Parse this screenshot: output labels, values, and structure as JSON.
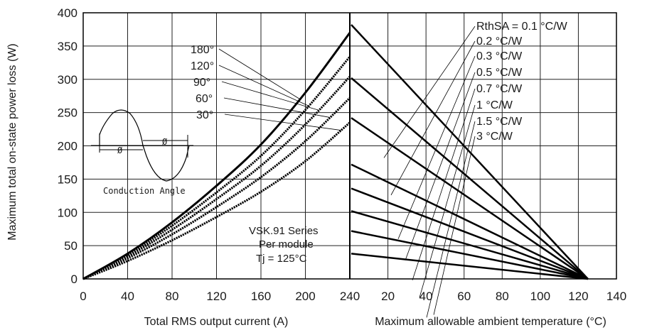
{
  "chart_data": [
    {
      "type": "line",
      "xlabel": "Total RMS output current (A)",
      "ylabel": "Maximum total on-state power loss (W)",
      "xlim": [
        0,
        240
      ],
      "ylim": [
        0,
        400
      ],
      "x_ticks": [
        "0",
        "40",
        "80",
        "120",
        "160",
        "200",
        "240"
      ],
      "y_ticks": [
        "0",
        "50",
        "100",
        "150",
        "200",
        "250",
        "300",
        "350",
        "400"
      ],
      "grid": true,
      "series": [
        {
          "name": "180°",
          "x": [
            0,
            40,
            80,
            120,
            160,
            200,
            240
          ],
          "y": [
            0,
            38,
            85,
            140,
            202,
            280,
            370
          ]
        },
        {
          "name": "120°",
          "x": [
            0,
            40,
            80,
            120,
            160,
            200,
            240
          ],
          "y": [
            0,
            36,
            80,
            130,
            185,
            254,
            334
          ]
        },
        {
          "name": "90°",
          "x": [
            0,
            40,
            80,
            120,
            160,
            200,
            240
          ],
          "y": [
            0,
            34,
            74,
            120,
            170,
            232,
            304
          ]
        },
        {
          "name": "60°",
          "x": [
            0,
            40,
            80,
            120,
            160,
            200,
            240
          ],
          "y": [
            0,
            31,
            67,
            108,
            153,
            207,
            272
          ]
        },
        {
          "name": "30°",
          "x": [
            0,
            40,
            80,
            120,
            160,
            200,
            240
          ],
          "y": [
            0,
            27,
            58,
            93,
            131,
            177,
            235
          ]
        }
      ],
      "annotations": {
        "series_text": "VSK.91 Series",
        "module_text": "Per module",
        "tj_text": "Tj = 125°C",
        "inset_label": "Conduction Angle",
        "phi": "Ø"
      }
    },
    {
      "type": "line",
      "xlabel": "Maximum allowable ambient temperature (°C)",
      "xlim": [
        0,
        140
      ],
      "x_ticks": [
        "20",
        "40",
        "60",
        "80",
        "100",
        "120",
        "140"
      ],
      "grid": true,
      "series": [
        {
          "name": "RthSA = 0.1 °C/W",
          "x": [
            0,
            125
          ],
          "y": [
            382,
            0
          ]
        },
        {
          "name": "0.2 °C/W",
          "x": [
            0,
            125
          ],
          "y": [
            302,
            0
          ]
        },
        {
          "name": "0.3 °C/W",
          "x": [
            0,
            125
          ],
          "y": [
            242,
            0
          ]
        },
        {
          "name": "0.5 °C/W",
          "x": [
            0,
            125
          ],
          "y": [
            172,
            0
          ]
        },
        {
          "name": "0.7 °C/W",
          "x": [
            0,
            125
          ],
          "y": [
            136,
            0
          ]
        },
        {
          "name": "1 °C/W",
          "x": [
            0,
            125
          ],
          "y": [
            102,
            0
          ]
        },
        {
          "name": "1.5 °C/W",
          "x": [
            0,
            125
          ],
          "y": [
            72,
            0
          ]
        },
        {
          "name": "3 °C/W",
          "x": [
            0,
            125
          ],
          "y": [
            38,
            0
          ]
        }
      ]
    }
  ]
}
